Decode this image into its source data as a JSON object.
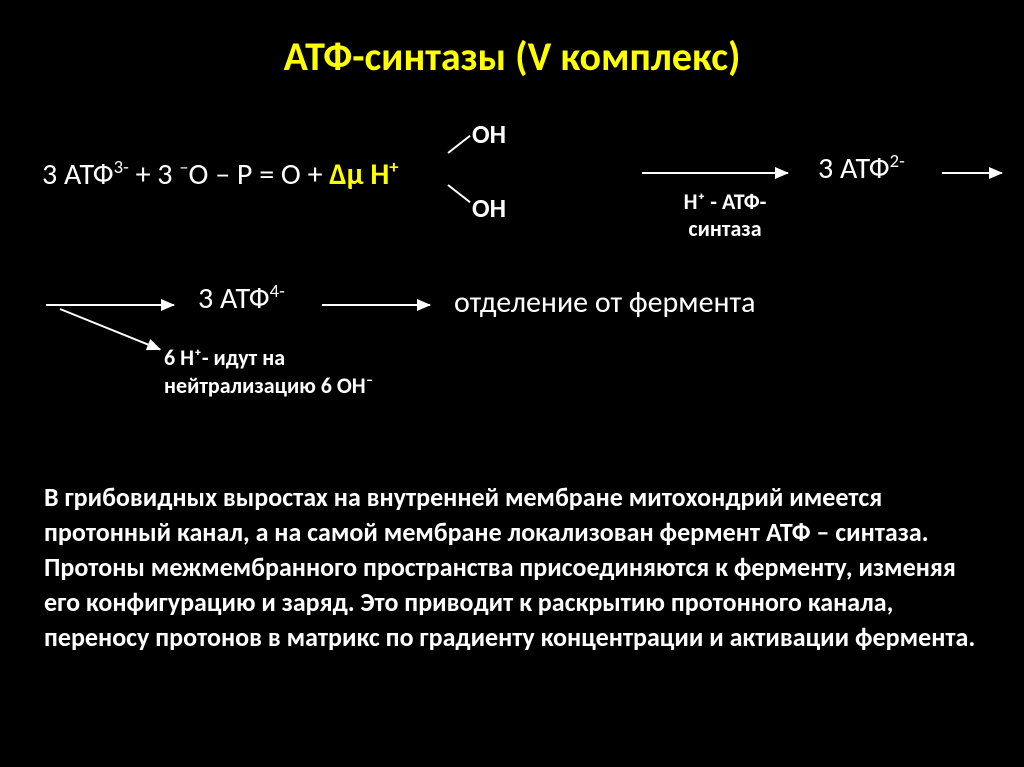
{
  "title_color": "#ffff00",
  "accent_color": "#ffff00",
  "text_color": "#ffffff",
  "bg_color": "#000000",
  "title": "АТФ-синтазы (V комплекс)",
  "eq": {
    "lhs_pre": "3 АТФ",
    "lhs_sup": "3-",
    "lhs_mid": " + 3 ",
    "lhs_neg": "–",
    "lhs_post": "О – Р = О + ",
    "delta": "Δμ Н",
    "delta_sup": "+",
    "oh": "ОН"
  },
  "arrow1_label_l1": "Н⁺ - АТФ-",
  "arrow1_label_l2": "синтаза",
  "atp2_pre": "3 АТФ",
  "atp2_sup": "2-",
  "atp4_pre": "3 АТФ",
  "atp4_sup": "4-",
  "sep": "отделение от фермента",
  "h6_l1": "6 Н⁺- идут на",
  "h6_l2": "нейтрализацию 6 ОН⁻",
  "body": "В грибовидных выростах  на внутренней мембране митохондрий имеется протонный канал, а на самой мембране локализован фермент АТФ – синтаза. Протоны межмембранного пространства присоединяются к ферменту, изменяя его конфигурацию и заряд. Это приводит к раскрытию протонного канала, переносу протонов в матрикс по градиенту концентрации и активации фермента."
}
